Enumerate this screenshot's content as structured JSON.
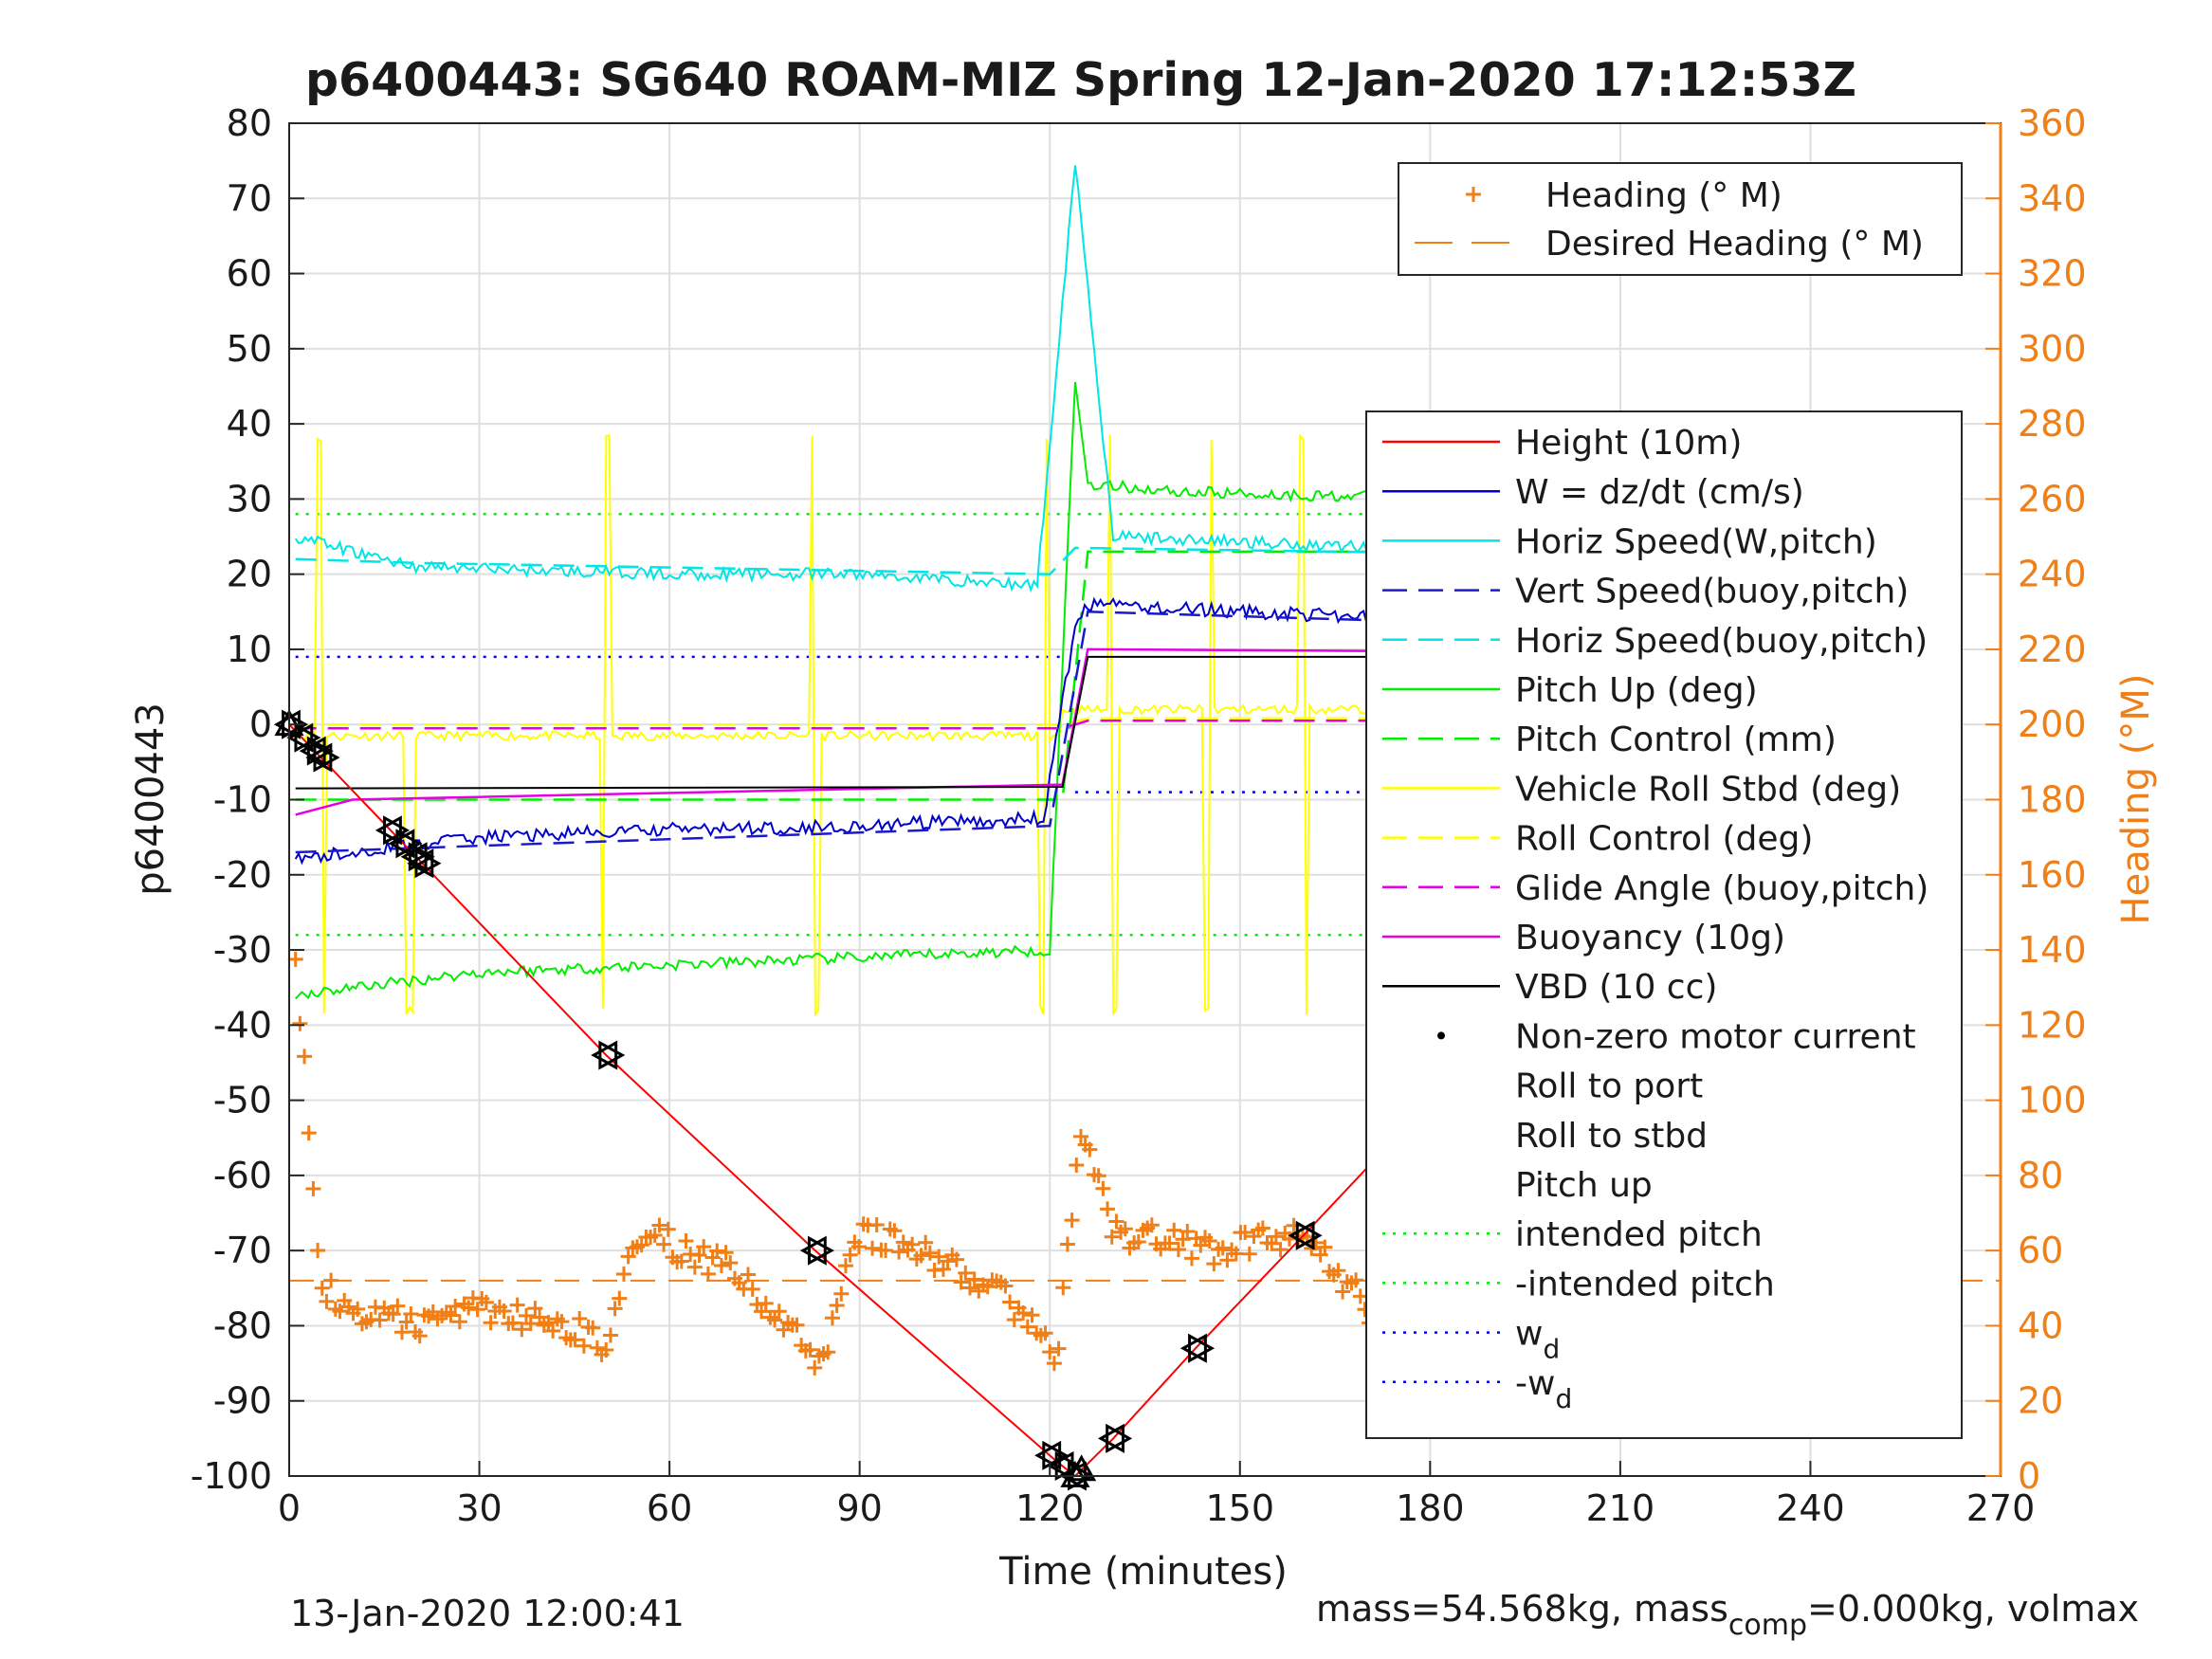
{
  "chart_data": {
    "type": "line",
    "title": "p6400443: SG640 ROAM-MIZ Spring 12-Jan-2020 17:12:53Z",
    "xlabel": "Time (minutes)",
    "ylabel": "p6400443",
    "y2label": "Heading (°M)",
    "xlim": [
      0,
      270
    ],
    "ylim": [
      -100,
      80
    ],
    "y2lim": [
      0,
      360
    ],
    "xticks": [
      "0",
      "30",
      "60",
      "90",
      "120",
      "150",
      "180",
      "210",
      "240",
      "270"
    ],
    "yticks": [
      "80",
      "70",
      "60",
      "50",
      "40",
      "30",
      "20",
      "10",
      "0",
      "-10",
      "-20",
      "-30",
      "-40",
      "-50",
      "-60",
      "-70",
      "-80",
      "-90",
      "-100"
    ],
    "y2ticks": [
      "360",
      "340",
      "320",
      "300",
      "280",
      "260",
      "240",
      "220",
      "200",
      "180",
      "160",
      "140",
      "120",
      "100",
      "80",
      "60",
      "40",
      "20",
      "0"
    ],
    "grid": true,
    "legend_right_axis": [
      "Heading (° M)",
      "Desired Heading (° M)"
    ],
    "legend_left_axis": [
      "Height (10m)",
      "W = dz/dt (cm/s)",
      "Horiz Speed(W,pitch)",
      "Vert Speed(buoy,pitch)",
      "Horiz Speed(buoy,pitch)",
      "Pitch Up (deg)",
      "Pitch Control (mm)",
      "Vehicle Roll Stbd (deg)",
      "Roll Control (deg)",
      "Glide Angle (buoy,pitch)",
      "Buoyancy (10g)",
      "VBD (10 cc)",
      "Non-zero motor current",
      "Roll to port",
      "Roll to stbd",
      "Pitch up",
      "intended pitch",
      "-intended pitch",
      "w",
      "-w"
    ],
    "legend_subscript": "d",
    "legend_placement": "top-right",
    "colors": {
      "height": "#ff0000",
      "w": "#0000cc",
      "horiz_speed": "#00e5e5",
      "vert_speed": "#1a1acc",
      "pitch": "#00ee00",
      "roll": "#ffff00",
      "glide": "#e600e6",
      "buoyancy": "#e600e6",
      "vbd": "#000000",
      "heading": "#f07f17",
      "intended_pitch": "#00ee00",
      "wd": "#0000ff"
    },
    "series": [
      {
        "name": "Height (10m)",
        "x": [
          0,
          50,
          83,
          121,
          124,
          130,
          143,
          160,
          179,
          196,
          215,
          246
        ],
        "y": [
          0,
          -44,
          -70,
          -98,
          -100,
          -95,
          -83,
          -68,
          -51,
          -37,
          -21,
          0
        ]
      },
      {
        "name": "W = dz/dt (cm/s)",
        "x": [
          1,
          10,
          30,
          60,
          90,
          119,
          124,
          126,
          150,
          180,
          210,
          240,
          246
        ],
        "y": [
          -18,
          -17,
          -15,
          -14,
          -13.5,
          -12.5,
          13,
          16,
          15,
          14,
          13,
          12,
          14
        ]
      },
      {
        "name": "Horiz Speed(W,pitch)",
        "x": [
          1,
          10,
          20,
          40,
          60,
          90,
          118,
          124,
          130,
          160,
          190,
          220,
          245
        ],
        "y": [
          25,
          23,
          21,
          20.5,
          20,
          20,
          18.5,
          75,
          25,
          24,
          23,
          22,
          20
        ]
      },
      {
        "name": "Pitch Up (deg)",
        "x": [
          1,
          10,
          30,
          60,
          90,
          120,
          124,
          126,
          140,
          160,
          200,
          230,
          246
        ],
        "y": [
          -36,
          -35,
          -33,
          -32,
          -31,
          -30,
          46,
          32,
          31,
          30.5,
          30,
          29.5,
          30
        ]
      },
      {
        "name": "Pitch Control (mm)",
        "x": [
          1,
          122,
          126,
          246
        ],
        "y": [
          -10,
          -10,
          23,
          23
        ]
      },
      {
        "name": "Buoyancy (10g)",
        "x": [
          1,
          10,
          122,
          126,
          230,
          235,
          246
        ],
        "y": [
          -12,
          -10,
          -8,
          10,
          9.5,
          6,
          9
        ]
      },
      {
        "name": "VBD (10 cc)",
        "x": [
          1,
          122,
          126,
          246
        ],
        "y": [
          -8.5,
          -8.3,
          9,
          9
        ]
      },
      {
        "name": "Glide Angle (buoy,pitch)",
        "x": [
          1,
          122,
          126,
          246
        ],
        "y": [
          -0.5,
          -0.5,
          0.5,
          0.5
        ]
      },
      {
        "name": "Heading (° M)",
        "x": [
          1,
          5,
          10,
          20,
          30,
          40,
          50,
          55,
          70,
          84,
          90,
          100,
          115,
          121,
          125,
          130,
          145,
          160,
          175,
          180,
          195,
          210,
          230,
          245
        ],
        "y": [
          140,
          50,
          45,
          40,
          45,
          42,
          35,
          65,
          55,
          30,
          65,
          60,
          45,
          30,
          95,
          65,
          60,
          65,
          35,
          70,
          55,
          50,
          45,
          50
        ]
      },
      {
        "name": "Desired Heading (° M)",
        "x": [
          0,
          270
        ],
        "y": [
          52,
          52
        ]
      }
    ]
  },
  "footer": {
    "timestamp": "13-Jan-2020 12:00:41",
    "mass_prefix": "mass=54.568kg, mass",
    "mass_sub": "comp",
    "mass_suffix": "=0.000kg, volmax"
  }
}
